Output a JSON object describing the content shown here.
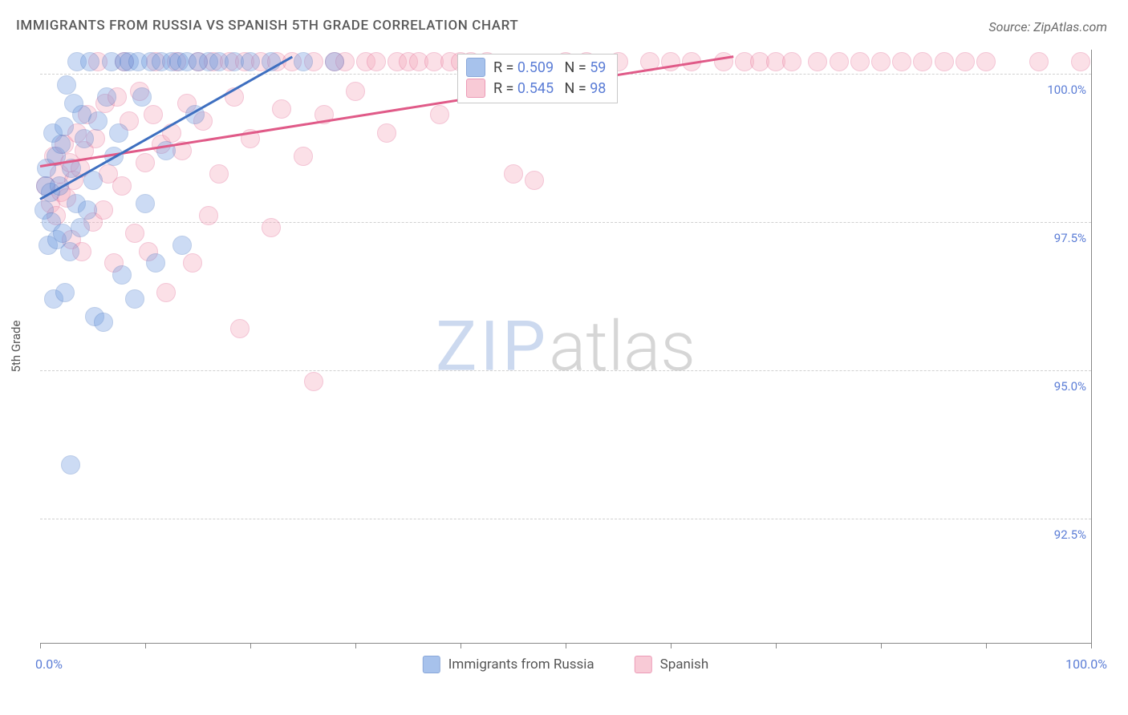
{
  "title": "IMMIGRANTS FROM RUSSIA VS SPANISH 5TH GRADE CORRELATION CHART",
  "source": "Source: ZipAtlas.com",
  "y_axis_title": "5th Grade",
  "x_min_label": "0.0%",
  "x_max_label": "100.0%",
  "watermark_a": "ZIP",
  "watermark_b": "atlas",
  "chart": {
    "type": "scatter",
    "background_color": "#ffffff",
    "grid_color": "#d0d0d0",
    "axis_color": "#888888",
    "label_color": "#5b7dd6",
    "title_color": "#5a5a5a",
    "title_fontsize": 17,
    "label_fontsize": 15,
    "xlim": [
      0,
      100
    ],
    "ylim": [
      90.4,
      100.4
    ],
    "x_ticks": [
      0,
      10,
      20,
      30,
      40,
      50,
      60,
      70,
      80,
      90,
      100
    ],
    "y_grid": [
      {
        "v": 100.0,
        "label": "100.0%"
      },
      {
        "v": 97.5,
        "label": "97.5%"
      },
      {
        "v": 95.0,
        "label": "95.0%"
      },
      {
        "v": 92.5,
        "label": "92.5%"
      }
    ],
    "marker_radius": 11,
    "marker_opacity": 0.35,
    "line_width": 3,
    "series": [
      {
        "name": "Immigrants from Russia",
        "fill": "#6e9be0",
        "stroke": "#3e6fc0",
        "R": "0.509",
        "N": "59",
        "trend": {
          "x1": 0,
          "y1": 97.9,
          "x2": 24,
          "y2": 100.3
        },
        "points": [
          [
            0.4,
            97.7
          ],
          [
            0.5,
            98.1
          ],
          [
            0.6,
            98.4
          ],
          [
            0.8,
            97.1
          ],
          [
            1.0,
            98.0
          ],
          [
            1.1,
            97.5
          ],
          [
            1.2,
            99.0
          ],
          [
            1.3,
            96.2
          ],
          [
            1.5,
            98.6
          ],
          [
            1.6,
            97.2
          ],
          [
            1.8,
            98.1
          ],
          [
            2.0,
            98.8
          ],
          [
            2.1,
            97.3
          ],
          [
            2.3,
            99.1
          ],
          [
            2.4,
            96.3
          ],
          [
            2.5,
            99.8
          ],
          [
            2.8,
            97.0
          ],
          [
            3.0,
            98.4
          ],
          [
            3.2,
            99.5
          ],
          [
            3.4,
            97.8
          ],
          [
            3.5,
            100.2
          ],
          [
            3.8,
            97.4
          ],
          [
            4.0,
            99.3
          ],
          [
            4.2,
            98.9
          ],
          [
            4.5,
            97.7
          ],
          [
            4.7,
            100.2
          ],
          [
            5.0,
            98.2
          ],
          [
            5.2,
            95.9
          ],
          [
            5.5,
            99.2
          ],
          [
            6.0,
            95.8
          ],
          [
            6.3,
            99.6
          ],
          [
            6.8,
            100.2
          ],
          [
            7.0,
            98.6
          ],
          [
            7.5,
            99.0
          ],
          [
            7.8,
            96.6
          ],
          [
            8.0,
            100.2
          ],
          [
            8.5,
            100.2
          ],
          [
            9.0,
            96.2
          ],
          [
            9.3,
            100.2
          ],
          [
            9.7,
            99.6
          ],
          [
            10.0,
            97.8
          ],
          [
            10.5,
            100.2
          ],
          [
            11.0,
            96.8
          ],
          [
            11.5,
            100.2
          ],
          [
            12.0,
            98.7
          ],
          [
            12.5,
            100.2
          ],
          [
            13.2,
            100.2
          ],
          [
            13.5,
            97.1
          ],
          [
            14.0,
            100.2
          ],
          [
            14.7,
            99.3
          ],
          [
            15.0,
            100.2
          ],
          [
            16.0,
            100.2
          ],
          [
            17.0,
            100.2
          ],
          [
            18.5,
            100.2
          ],
          [
            20.0,
            100.2
          ],
          [
            22.0,
            100.2
          ],
          [
            25.0,
            100.2
          ],
          [
            28.0,
            100.2
          ],
          [
            2.9,
            93.4
          ]
        ]
      },
      {
        "name": "Spanish",
        "fill": "#f4a8bb",
        "stroke": "#e05a88",
        "R": "0.545",
        "N": "98",
        "trend": {
          "x1": 0,
          "y1": 98.45,
          "x2": 66,
          "y2": 100.3
        },
        "points": [
          [
            0.5,
            98.1
          ],
          [
            1.0,
            97.8
          ],
          [
            1.3,
            98.6
          ],
          [
            1.5,
            97.6
          ],
          [
            1.8,
            98.3
          ],
          [
            2.0,
            98.0
          ],
          [
            2.3,
            98.8
          ],
          [
            2.5,
            97.9
          ],
          [
            2.8,
            98.5
          ],
          [
            3.0,
            97.2
          ],
          [
            3.2,
            98.2
          ],
          [
            3.5,
            99.0
          ],
          [
            3.8,
            98.4
          ],
          [
            4.0,
            97.0
          ],
          [
            4.2,
            98.7
          ],
          [
            4.5,
            99.3
          ],
          [
            5.0,
            97.5
          ],
          [
            5.3,
            98.9
          ],
          [
            5.5,
            100.2
          ],
          [
            6.0,
            97.7
          ],
          [
            6.2,
            99.5
          ],
          [
            6.5,
            98.3
          ],
          [
            7.0,
            96.8
          ],
          [
            7.3,
            99.6
          ],
          [
            7.8,
            98.1
          ],
          [
            8.0,
            100.2
          ],
          [
            8.5,
            99.2
          ],
          [
            9.0,
            97.3
          ],
          [
            9.5,
            99.7
          ],
          [
            10.0,
            98.5
          ],
          [
            10.3,
            97.0
          ],
          [
            10.8,
            99.3
          ],
          [
            11.0,
            100.2
          ],
          [
            11.5,
            98.8
          ],
          [
            12.0,
            96.3
          ],
          [
            12.5,
            99.0
          ],
          [
            13.0,
            100.2
          ],
          [
            13.5,
            98.7
          ],
          [
            14.0,
            99.5
          ],
          [
            14.5,
            96.8
          ],
          [
            15.0,
            100.2
          ],
          [
            15.5,
            99.2
          ],
          [
            16.0,
            97.6
          ],
          [
            16.5,
            100.2
          ],
          [
            17.0,
            98.3
          ],
          [
            18.0,
            100.2
          ],
          [
            18.5,
            99.6
          ],
          [
            19.0,
            95.7
          ],
          [
            19.5,
            100.2
          ],
          [
            20.0,
            98.9
          ],
          [
            21.0,
            100.2
          ],
          [
            22.0,
            97.4
          ],
          [
            22.5,
            100.2
          ],
          [
            23.0,
            99.4
          ],
          [
            24.0,
            100.2
          ],
          [
            25.0,
            98.6
          ],
          [
            26.0,
            100.2
          ],
          [
            27.0,
            99.3
          ],
          [
            28.0,
            100.2
          ],
          [
            29.0,
            100.2
          ],
          [
            30.0,
            99.7
          ],
          [
            31.0,
            100.2
          ],
          [
            32.0,
            100.2
          ],
          [
            33.0,
            99.0
          ],
          [
            34.0,
            100.2
          ],
          [
            35.0,
            100.2
          ],
          [
            36.0,
            100.2
          ],
          [
            37.5,
            100.2
          ],
          [
            38.0,
            99.3
          ],
          [
            39.0,
            100.2
          ],
          [
            40.0,
            100.2
          ],
          [
            41.0,
            100.2
          ],
          [
            42.5,
            100.2
          ],
          [
            45.0,
            98.3
          ],
          [
            47.0,
            98.2
          ],
          [
            50.0,
            100.2
          ],
          [
            52.0,
            100.2
          ],
          [
            55.0,
            100.2
          ],
          [
            58.0,
            100.2
          ],
          [
            60.0,
            100.2
          ],
          [
            62.0,
            100.2
          ],
          [
            65.0,
            100.2
          ],
          [
            67.0,
            100.2
          ],
          [
            68.5,
            100.2
          ],
          [
            70.0,
            100.2
          ],
          [
            71.5,
            100.2
          ],
          [
            74.0,
            100.2
          ],
          [
            76.0,
            100.2
          ],
          [
            78.0,
            100.2
          ],
          [
            80.0,
            100.2
          ],
          [
            82.0,
            100.2
          ],
          [
            84.0,
            100.2
          ],
          [
            86.0,
            100.2
          ],
          [
            88.0,
            100.2
          ],
          [
            90.0,
            100.2
          ],
          [
            95.0,
            100.2
          ],
          [
            99.0,
            100.2
          ],
          [
            26.0,
            94.8
          ]
        ]
      }
    ]
  },
  "legend": {
    "series1_label": "Immigrants from Russia",
    "series2_label": "Spanish"
  }
}
